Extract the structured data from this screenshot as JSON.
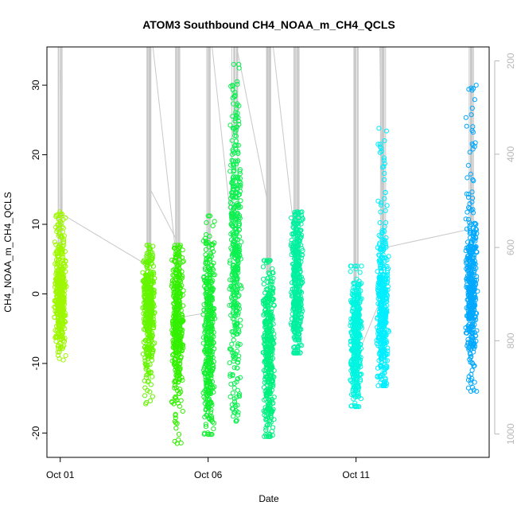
{
  "chart_data": {
    "type": "scatter",
    "title": "ATOM3 Southbound CH4_NOAA_m_CH4_QCLS",
    "xlabel": "Date",
    "ylabel": "CH4_NOAA_m_CH4_QCLS",
    "x_ticks": [
      {
        "day": 1,
        "label": "Oct 01"
      },
      {
        "day": 6,
        "label": "Oct 06"
      },
      {
        "day": 11,
        "label": "Oct 11"
      }
    ],
    "y_ticks": [
      -20,
      -10,
      0,
      10,
      20,
      30
    ],
    "right_axis_ticks": [
      200,
      400,
      600,
      800,
      1000
    ],
    "xlim": [
      0.55,
      15.5
    ],
    "ylim": [
      -23.5,
      35.5
    ],
    "right_ylim": [
      1050,
      170
    ],
    "grid": false,
    "legend": "none",
    "clusters": [
      {
        "day": 1.0,
        "ymin": -9.5,
        "ymax": 11.8,
        "core_lo": -6,
        "core_hi": 7,
        "color": "#9ef700"
      },
      {
        "day": 3.99,
        "ymin": -15.8,
        "ymax": 7.0,
        "core_lo": -9,
        "core_hi": 5,
        "color": "#66f500"
      },
      {
        "day": 4.97,
        "ymin": -21.5,
        "ymax": 7.0,
        "core_lo": -12,
        "core_hi": 4,
        "color": "#33f000"
      },
      {
        "day": 6.03,
        "ymin": -20.2,
        "ymax": 11.2,
        "core_lo": -17,
        "core_hi": 6,
        "color": "#14ee30"
      },
      {
        "day": 6.92,
        "ymin": -18.3,
        "ymax": 33.0,
        "core_lo": -10,
        "core_hi": 23,
        "color": "#0cf050"
      },
      {
        "day": 8.05,
        "ymin": -20.5,
        "ymax": 4.8,
        "core_lo": -18,
        "core_hi": 3,
        "color": "#00f080"
      },
      {
        "day": 9.0,
        "ymin": -8.5,
        "ymax": 11.8,
        "core_lo": -7,
        "core_hi": 10,
        "color": "#00f0a0"
      },
      {
        "day": 11.0,
        "ymin": -16.2,
        "ymax": 4.0,
        "core_lo": -14,
        "core_hi": 1.5,
        "color": "#00f5e0"
      },
      {
        "day": 11.9,
        "ymin": -13.2,
        "ymax": 23.8,
        "core_lo": -11,
        "core_hi": 6,
        "color": "#00eeff"
      },
      {
        "day": 14.9,
        "ymin": -14.0,
        "ymax": 30.0,
        "core_lo": -8,
        "core_hi": 10,
        "color": "#00a8ff"
      }
    ],
    "altitude_line_color": "#c8c8c8"
  }
}
